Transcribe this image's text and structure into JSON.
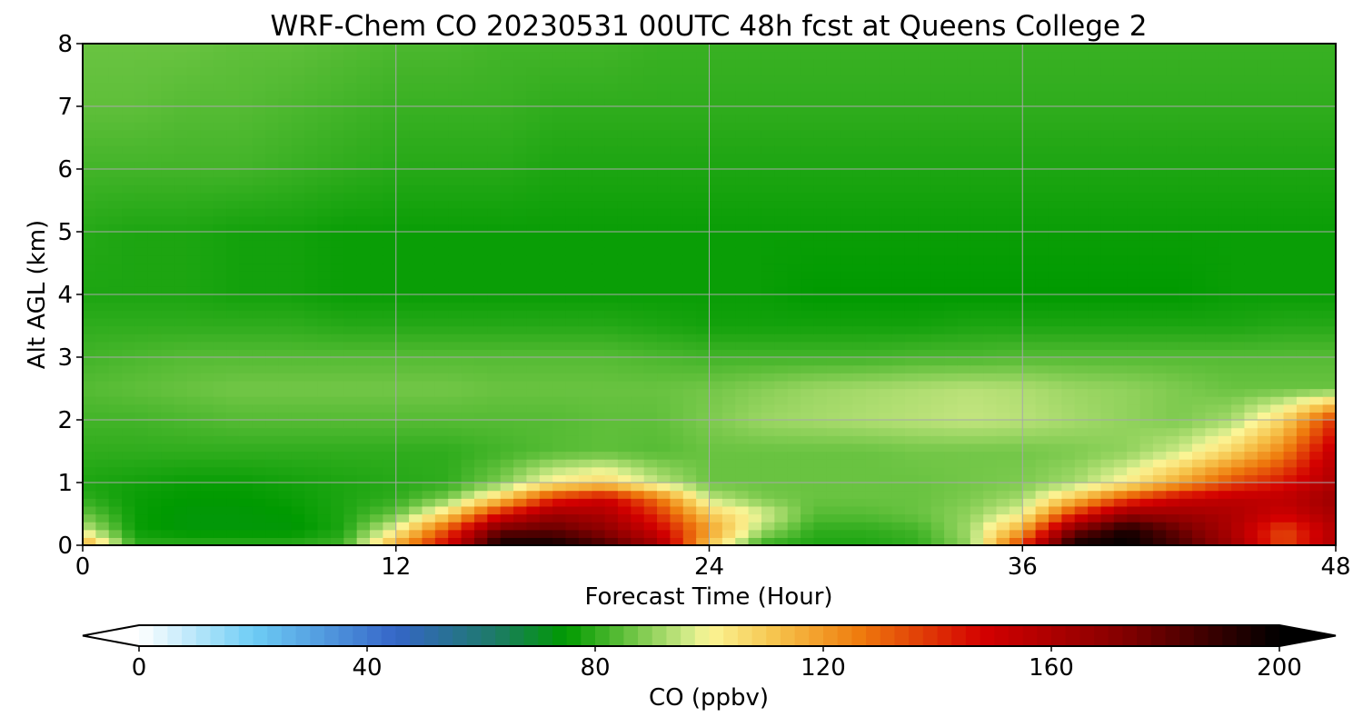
{
  "chart_data": {
    "type": "heatmap",
    "title": "WRF-Chem CO  20230531 00UTC 48h fcst at Queens College 2",
    "xlabel": "Forecast Time (Hour)",
    "ylabel": "Alt AGL (km)",
    "xlim": [
      0,
      48
    ],
    "ylim": [
      0,
      8
    ],
    "xticks": [
      0,
      12,
      24,
      36,
      48
    ],
    "yticks": [
      0,
      1,
      2,
      3,
      4,
      5,
      6,
      7,
      8
    ],
    "grid": true,
    "colorbar": {
      "label": "CO  (ppbv)",
      "orientation": "horizontal",
      "placement": "bottom",
      "range": [
        0,
        200
      ],
      "ticks": [
        0,
        40,
        80,
        120,
        160,
        200
      ],
      "extend": "both",
      "stops": [
        {
          "value": 0,
          "color": "#ffffff"
        },
        {
          "value": 20,
          "color": "#6ecdf5"
        },
        {
          "value": 45,
          "color": "#3566c8"
        },
        {
          "value": 62,
          "color": "#1e7a6a"
        },
        {
          "value": 75,
          "color": "#009a00"
        },
        {
          "value": 85,
          "color": "#5fbf3a"
        },
        {
          "value": 96,
          "color": "#cde986"
        },
        {
          "value": 100,
          "color": "#fbf596"
        },
        {
          "value": 112,
          "color": "#f6c24a"
        },
        {
          "value": 126,
          "color": "#ef7d0e"
        },
        {
          "value": 148,
          "color": "#d40000"
        },
        {
          "value": 172,
          "color": "#860000"
        },
        {
          "value": 200,
          "color": "#000000"
        }
      ]
    },
    "data_columns_x": [
      0,
      2,
      4,
      6,
      8,
      10,
      12,
      14,
      16,
      18,
      20,
      22,
      24,
      26,
      28,
      30,
      32,
      34,
      36,
      38,
      40,
      42,
      44,
      46,
      48
    ],
    "data_rows_y": [
      0.0,
      0.25,
      0.5,
      0.75,
      1.0,
      1.5,
      2.0,
      2.5,
      3.0,
      3.5,
      4.0,
      5.0,
      6.0,
      7.0,
      8.0
    ],
    "z": [
      [
        120,
        80,
        80,
        80,
        80,
        82,
        118,
        150,
        198,
        198,
        185,
        165,
        110,
        80,
        78,
        78,
        80,
        90,
        140,
        198,
        200,
        185,
        165,
        135,
        160
      ],
      [
        96,
        76,
        74,
        74,
        74,
        78,
        100,
        135,
        178,
        180,
        170,
        150,
        120,
        92,
        80,
        80,
        82,
        92,
        118,
        175,
        195,
        178,
        160,
        135,
        158
      ],
      [
        86,
        76,
        74,
        74,
        75,
        78,
        86,
        108,
        145,
        165,
        160,
        140,
        110,
        98,
        84,
        84,
        86,
        90,
        100,
        140,
        168,
        165,
        160,
        150,
        162
      ],
      [
        80,
        76,
        75,
        75,
        76,
        78,
        80,
        88,
        110,
        140,
        150,
        128,
        95,
        88,
        86,
        86,
        86,
        88,
        92,
        112,
        135,
        150,
        155,
        155,
        165
      ],
      [
        78,
        77,
        76,
        76,
        77,
        78,
        79,
        80,
        88,
        102,
        108,
        95,
        86,
        86,
        86,
        86,
        86,
        87,
        88,
        92,
        102,
        118,
        135,
        145,
        160
      ],
      [
        80,
        80,
        80,
        80,
        80,
        80,
        80,
        80,
        82,
        84,
        85,
        84,
        86,
        86,
        86,
        86,
        87,
        87,
        87,
        88,
        90,
        96,
        108,
        125,
        155
      ],
      [
        82,
        82,
        83,
        84,
        84,
        84,
        84,
        84,
        84,
        84,
        85,
        85,
        88,
        91,
        92,
        93,
        94,
        95,
        94,
        92,
        90,
        88,
        92,
        108,
        140
      ],
      [
        84,
        85,
        86,
        87,
        87,
        87,
        87,
        87,
        86,
        86,
        86,
        86,
        87,
        89,
        91,
        92,
        93,
        94,
        93,
        91,
        90,
        88,
        86,
        86,
        86
      ],
      [
        82,
        83,
        84,
        84,
        84,
        84,
        84,
        84,
        84,
        84,
        84,
        83,
        82,
        82,
        82,
        82,
        83,
        83,
        84,
        84,
        84,
        84,
        84,
        84,
        84
      ],
      [
        80,
        80,
        80,
        80,
        80,
        79,
        79,
        79,
        79,
        79,
        79,
        78,
        77,
        77,
        77,
        77,
        77,
        78,
        78,
        78,
        78,
        78,
        78,
        79,
        79
      ],
      [
        78,
        78,
        78,
        77,
        77,
        76,
        76,
        76,
        76,
        76,
        76,
        76,
        76,
        76,
        75,
        75,
        75,
        75,
        75,
        75,
        75,
        75,
        76,
        76,
        76
      ],
      [
        79,
        78,
        78,
        77,
        77,
        76,
        76,
        76,
        76,
        76,
        76,
        76,
        76,
        76,
        76,
        76,
        76,
        76,
        76,
        76,
        76,
        76,
        76,
        76,
        76
      ],
      [
        82,
        82,
        82,
        82,
        81,
        80,
        79,
        79,
        79,
        78,
        78,
        78,
        78,
        78,
        78,
        78,
        78,
        78,
        78,
        78,
        78,
        78,
        78,
        78,
        78
      ],
      [
        85,
        85,
        84,
        84,
        83,
        82,
        81,
        81,
        81,
        80,
        80,
        80,
        80,
        80,
        80,
        80,
        80,
        80,
        80,
        80,
        80,
        80,
        80,
        80,
        80
      ],
      [
        86,
        86,
        86,
        85,
        85,
        84,
        83,
        83,
        82,
        82,
        82,
        81,
        81,
        81,
        81,
        81,
        81,
        81,
        81,
        81,
        81,
        81,
        81,
        81,
        81
      ]
    ]
  }
}
